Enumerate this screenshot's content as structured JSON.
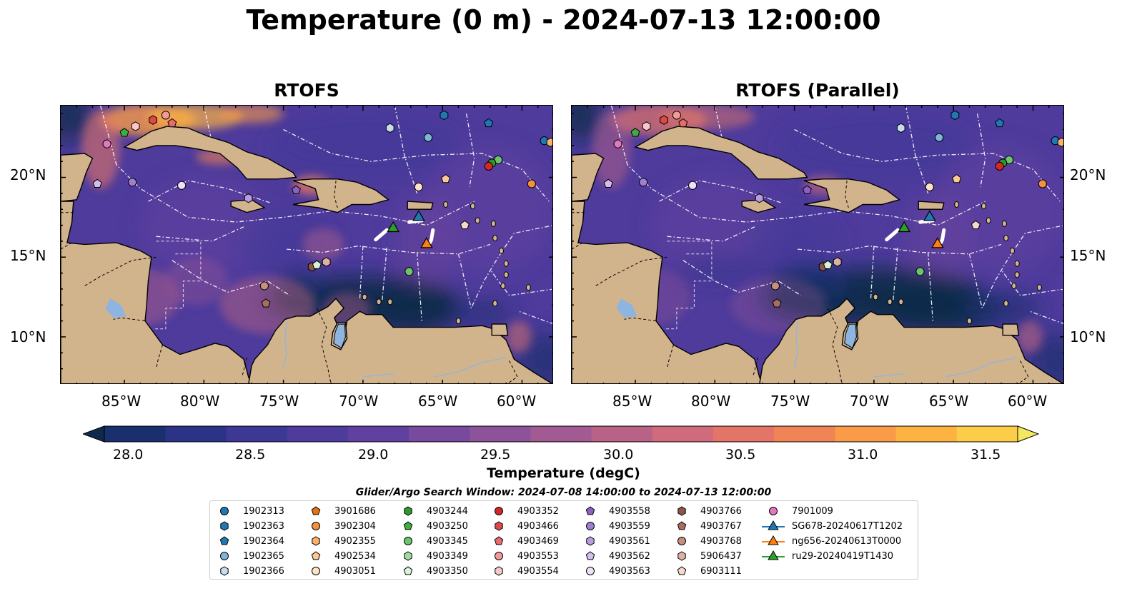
{
  "title": "Temperature (0 m) - 2024-07-13 12:00:00",
  "panels": [
    {
      "title": "RTOFS"
    },
    {
      "title": "RTOFS (Parallel)"
    }
  ],
  "map": {
    "lon_range": [
      -89,
      -58
    ],
    "lat_range": [
      7,
      24.5
    ],
    "lon_ticks": [
      "85°W",
      "80°W",
      "75°W",
      "70°W",
      "65°W",
      "60°W"
    ],
    "lat_ticks": [
      "20°N",
      "15°N",
      "10°N"
    ]
  },
  "colorbar": {
    "label": "Temperature (degC)",
    "ticks": [
      "28.0",
      "28.5",
      "29.0",
      "29.5",
      "30.0",
      "30.5",
      "31.0",
      "31.5"
    ],
    "range": [
      28.0,
      31.75
    ],
    "colors": [
      "#0e2a4a",
      "#1a2f6e",
      "#2b3387",
      "#3d3795",
      "#4e3b9c",
      "#61419f",
      "#774a9e",
      "#8c539b",
      "#a25a93",
      "#b96288",
      "#cf6b7a",
      "#e27568",
      "#f18456",
      "#f99b47",
      "#fcb342",
      "#fbcd48",
      "#f4e85e"
    ]
  },
  "search_window": "Glider/Argo Search Window: 2024-07-08 14:00:00 to 2024-07-13 12:00:00",
  "legend": [
    {
      "label": "1902313",
      "shape": "circle",
      "color": "#1f77b4"
    },
    {
      "label": "1902363",
      "shape": "hexagon",
      "color": "#1f77b4"
    },
    {
      "label": "1902364",
      "shape": "pentagon",
      "color": "#1f77b4"
    },
    {
      "label": "1902365",
      "shape": "circle",
      "color": "#7fb4da"
    },
    {
      "label": "1902366",
      "shape": "hexagon",
      "color": "#c6dcef"
    },
    {
      "label": "3901686",
      "shape": "pentagon",
      "color": "#e6740e"
    },
    {
      "label": "3902304",
      "shape": "circle",
      "color": "#f3913c"
    },
    {
      "label": "4902355",
      "shape": "hexagon",
      "color": "#f9b068"
    },
    {
      "label": "4902534",
      "shape": "pentagon",
      "color": "#fcc996"
    },
    {
      "label": "4903051",
      "shape": "circle",
      "color": "#fde2c5"
    },
    {
      "label": "4903244",
      "shape": "hexagon",
      "color": "#2a9b2a"
    },
    {
      "label": "4903250",
      "shape": "pentagon",
      "color": "#40ac40"
    },
    {
      "label": "4903345",
      "shape": "circle",
      "color": "#6cc46c"
    },
    {
      "label": "4903349",
      "shape": "hexagon",
      "color": "#9cdc9c"
    },
    {
      "label": "4903350",
      "shape": "pentagon",
      "color": "#d6f5d6"
    },
    {
      "label": "4903352",
      "shape": "circle",
      "color": "#d62728"
    },
    {
      "label": "4903466",
      "shape": "hexagon",
      "color": "#e04848"
    },
    {
      "label": "4903469",
      "shape": "pentagon",
      "color": "#ea6b6b"
    },
    {
      "label": "4903553",
      "shape": "circle",
      "color": "#f29a9a"
    },
    {
      "label": "4903554",
      "shape": "hexagon",
      "color": "#f9c8c8"
    },
    {
      "label": "4903558",
      "shape": "pentagon",
      "color": "#8c61c2"
    },
    {
      "label": "4903559",
      "shape": "circle",
      "color": "#a07ed0"
    },
    {
      "label": "4903561",
      "shape": "hexagon",
      "color": "#b89ce0"
    },
    {
      "label": "4903562",
      "shape": "pentagon",
      "color": "#d2bff0"
    },
    {
      "label": "4903563",
      "shape": "circle",
      "color": "#ece0fa"
    },
    {
      "label": "4903766",
      "shape": "hexagon",
      "color": "#8c564b"
    },
    {
      "label": "4903767",
      "shape": "pentagon",
      "color": "#a66e60"
    },
    {
      "label": "4903768",
      "shape": "circle",
      "color": "#c49080"
    },
    {
      "label": "5906437",
      "shape": "hexagon",
      "color": "#ddb2a3"
    },
    {
      "label": "6903111",
      "shape": "pentagon",
      "color": "#f6d8cc"
    },
    {
      "label": "7901009",
      "shape": "circle",
      "color": "#e377c2"
    },
    {
      "label": "SG678-20240617T1202",
      "shape": "triangle-line",
      "color": "#1f77b4"
    },
    {
      "label": "ng656-20240613T0000",
      "shape": "triangle-line",
      "color": "#ff7f0e"
    },
    {
      "label": "ru29-20240419T1430",
      "shape": "triangle-line",
      "color": "#2ca02c"
    }
  ],
  "markers": [
    {
      "lon": -85,
      "lat": 22.8,
      "shape": "pentagon",
      "color": "#40ac40"
    },
    {
      "lon": -84.3,
      "lat": 23.2,
      "shape": "hexagon",
      "color": "#f9c8c8"
    },
    {
      "lon": -83.2,
      "lat": 23.6,
      "shape": "hexagon",
      "color": "#e04848"
    },
    {
      "lon": -82.4,
      "lat": 23.9,
      "shape": "circle",
      "color": "#f29a9a"
    },
    {
      "lon": -82,
      "lat": 23.4,
      "shape": "pentagon",
      "color": "#ea6b6b"
    },
    {
      "lon": -86.1,
      "lat": 22.1,
      "shape": "circle",
      "color": "#e377c2"
    },
    {
      "lon": -84.5,
      "lat": 19.7,
      "shape": "circle",
      "color": "#a07ed0"
    },
    {
      "lon": -81.4,
      "lat": 19.5,
      "shape": "circle",
      "color": "#ece0fa"
    },
    {
      "lon": -86.7,
      "lat": 19.6,
      "shape": "pentagon",
      "color": "#d2bff0"
    },
    {
      "lon": -77.2,
      "lat": 18.7,
      "shape": "hexagon",
      "color": "#b89ce0"
    },
    {
      "lon": -74.2,
      "lat": 19.2,
      "shape": "pentagon",
      "color": "#8c61c2"
    },
    {
      "lon": -68.3,
      "lat": 23.1,
      "shape": "hexagon",
      "color": "#c6dcef"
    },
    {
      "lon": -65.9,
      "lat": 22.5,
      "shape": "circle",
      "color": "#7fb4da"
    },
    {
      "lon": -64.9,
      "lat": 23.9,
      "shape": "hexagon",
      "color": "#1f77b4"
    },
    {
      "lon": -62.1,
      "lat": 23.4,
      "shape": "pentagon",
      "color": "#1f77b4"
    },
    {
      "lon": -58.6,
      "lat": 22.3,
      "shape": "circle",
      "color": "#1f77b4"
    },
    {
      "lon": -58.2,
      "lat": 22.2,
      "shape": "hexagon",
      "color": "#f9b068"
    },
    {
      "lon": -61.5,
      "lat": 21.1,
      "shape": "circle",
      "color": "#6cc46c"
    },
    {
      "lon": -61.9,
      "lat": 20.9,
      "shape": "circle",
      "color": "#2a9b2a"
    },
    {
      "lon": -62.1,
      "lat": 20.7,
      "shape": "circle",
      "color": "#d62728"
    },
    {
      "lon": -64.8,
      "lat": 19.9,
      "shape": "pentagon",
      "color": "#fcc996"
    },
    {
      "lon": -66.5,
      "lat": 19.4,
      "shape": "circle",
      "color": "#fde2c5"
    },
    {
      "lon": -59.4,
      "lat": 19.6,
      "shape": "circle",
      "color": "#f3913c"
    },
    {
      "lon": -63.6,
      "lat": 17,
      "shape": "pentagon",
      "color": "#f6d8cc"
    },
    {
      "lon": -72.3,
      "lat": 14.7,
      "shape": "hexagon",
      "color": "#ddb2a3"
    },
    {
      "lon": -73.2,
      "lat": 14.4,
      "shape": "hexagon",
      "color": "#8c564b"
    },
    {
      "lon": -72.9,
      "lat": 14.5,
      "shape": "pentagon",
      "color": "#d6f5d6"
    },
    {
      "lon": -76.2,
      "lat": 13.2,
      "shape": "circle",
      "color": "#c49080"
    },
    {
      "lon": -76.1,
      "lat": 12.1,
      "shape": "pentagon",
      "color": "#a66e60"
    },
    {
      "lon": -67.1,
      "lat": 14.1,
      "shape": "circle",
      "color": "#6cc46c"
    }
  ],
  "gliders": [
    {
      "lon": -66.5,
      "lat": 17.5,
      "color": "#1f77b4"
    },
    {
      "lon": -66,
      "lat": 15.8,
      "color": "#ff7f0e"
    },
    {
      "lon": -68.1,
      "lat": 16.8,
      "color": "#2ca02c"
    }
  ]
}
